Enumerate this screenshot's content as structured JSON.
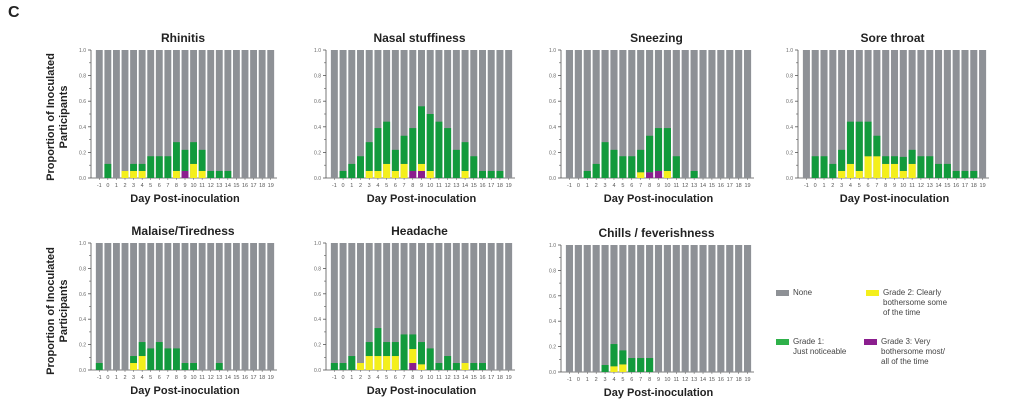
{
  "panel_label": "C",
  "y_axis_label_line1": "Proportion of Inoculated",
  "y_axis_label_line2": "Participants",
  "colors": {
    "none": "#8e9196",
    "grade1": "#129a3c",
    "grade2": "#f4ef1c",
    "grade3": "#8b1e8e",
    "axis": "#555555"
  },
  "legend": {
    "none": "None",
    "grade1_line1": "Grade 1:",
    "grade1_line2": "Just noticeable",
    "grade2_line1": "Grade 2: Clearly",
    "grade2_line2": "bothersome some",
    "grade2_line3": "of the time",
    "grade3_line1": "Grade 3: Very",
    "grade3_line2": "bothersome most/",
    "grade3_line3": "all of the time"
  },
  "chart_data": [
    {
      "type": "bar",
      "stacked": true,
      "title": "Rhinitis",
      "xlabel": "Day Post-inoculation",
      "ylabel": "Proportion of Inoculated Participants",
      "ylim": [
        0,
        1.0
      ],
      "yticks": [
        "0.0",
        "0.2",
        "0.4",
        "0.6",
        "0.8",
        "1.0"
      ],
      "categories": [
        "-1",
        "0",
        "1",
        "2",
        "3",
        "4",
        "5",
        "6",
        "7",
        "8",
        "9",
        "10",
        "11",
        "12",
        "13",
        "14",
        "15",
        "16",
        "17",
        "18",
        "19"
      ],
      "series": [
        {
          "name": "Grade 3",
          "values": [
            0,
            0,
            0,
            0,
            0,
            0,
            0,
            0,
            0,
            0,
            0.055,
            0,
            0,
            0,
            0,
            0,
            0,
            0,
            0,
            0,
            0
          ]
        },
        {
          "name": "Grade 2",
          "values": [
            0,
            0,
            0,
            0.055,
            0.055,
            0.055,
            0,
            0,
            0,
            0.055,
            0,
            0.11,
            0.055,
            0,
            0,
            0,
            0,
            0,
            0,
            0,
            0
          ]
        },
        {
          "name": "Grade 1",
          "values": [
            0,
            0.11,
            0,
            0,
            0.055,
            0.055,
            0.17,
            0.17,
            0.17,
            0.225,
            0.165,
            0.17,
            0.165,
            0.055,
            0.055,
            0.055,
            0,
            0,
            0,
            0,
            0
          ]
        },
        {
          "name": "None",
          "values": "remainder to 1.0"
        }
      ]
    },
    {
      "type": "bar",
      "stacked": true,
      "title": "Nasal stuffiness",
      "xlabel": "Day Post-inoculation",
      "ylim": [
        0,
        1.0
      ],
      "yticks": [
        "0.0",
        "0.2",
        "0.4",
        "0.6",
        "0.8",
        "1.0"
      ],
      "categories": [
        "-1",
        "0",
        "1",
        "2",
        "3",
        "4",
        "5",
        "6",
        "7",
        "8",
        "9",
        "10",
        "11",
        "12",
        "13",
        "14",
        "15",
        "16",
        "17",
        "18",
        "19"
      ],
      "series": [
        {
          "name": "Grade 3",
          "values": [
            0,
            0,
            0,
            0,
            0,
            0,
            0,
            0,
            0,
            0.055,
            0.055,
            0,
            0,
            0,
            0,
            0,
            0,
            0,
            0,
            0,
            0
          ]
        },
        {
          "name": "Grade 2",
          "values": [
            0,
            0,
            0,
            0,
            0.055,
            0.055,
            0.11,
            0.055,
            0.11,
            0,
            0.055,
            0.055,
            0,
            0,
            0,
            0.055,
            0,
            0,
            0,
            0,
            0
          ]
        },
        {
          "name": "Grade 1",
          "values": [
            0,
            0.055,
            0.11,
            0.17,
            0.225,
            0.335,
            0.33,
            0.165,
            0.22,
            0.335,
            0.45,
            0.445,
            0.44,
            0.39,
            0.22,
            0.225,
            0.17,
            0.055,
            0.055,
            0.055,
            0
          ]
        },
        {
          "name": "None",
          "values": "remainder to 1.0"
        }
      ]
    },
    {
      "type": "bar",
      "stacked": true,
      "title": "Sneezing",
      "xlabel": "Day Post-inoculation",
      "ylim": [
        0,
        1.0
      ],
      "yticks": [
        "0.0",
        "0.2",
        "0.4",
        "0.6",
        "0.8",
        "1.0"
      ],
      "categories": [
        "-1",
        "0",
        "1",
        "2",
        "3",
        "4",
        "5",
        "6",
        "7",
        "8",
        "9",
        "10",
        "11",
        "12",
        "13",
        "14",
        "15",
        "16",
        "17",
        "18",
        "19"
      ],
      "series": [
        {
          "name": "Grade 3",
          "values": [
            0,
            0,
            0,
            0,
            0,
            0,
            0,
            0,
            0,
            0.045,
            0.055,
            0,
            0,
            0,
            0,
            0,
            0,
            0,
            0,
            0,
            0
          ]
        },
        {
          "name": "Grade 2",
          "values": [
            0,
            0,
            0,
            0,
            0,
            0,
            0,
            0,
            0.045,
            0,
            0,
            0.055,
            0,
            0,
            0,
            0,
            0,
            0,
            0,
            0,
            0
          ]
        },
        {
          "name": "Grade 1",
          "values": [
            0,
            0,
            0.055,
            0.11,
            0.28,
            0.22,
            0.17,
            0.17,
            0.175,
            0.285,
            0.335,
            0.335,
            0.17,
            0,
            0.055,
            0,
            0,
            0,
            0,
            0,
            0
          ]
        },
        {
          "name": "None",
          "values": "remainder to 1.0"
        }
      ]
    },
    {
      "type": "bar",
      "stacked": true,
      "title": "Sore throat",
      "xlabel": "Day Post-inoculation",
      "ylim": [
        0,
        1.0
      ],
      "yticks": [
        "0.0",
        "0.2",
        "0.4",
        "0.6",
        "0.8",
        "1.0"
      ],
      "categories": [
        "-1",
        "0",
        "1",
        "2",
        "3",
        "4",
        "5",
        "6",
        "7",
        "8",
        "9",
        "10",
        "11",
        "12",
        "13",
        "14",
        "15",
        "16",
        "17",
        "18",
        "19"
      ],
      "series": [
        {
          "name": "Grade 3",
          "values": [
            0,
            0,
            0,
            0,
            0,
            0,
            0,
            0,
            0,
            0,
            0,
            0,
            0,
            0,
            0,
            0,
            0,
            0,
            0,
            0,
            0
          ]
        },
        {
          "name": "Grade 2",
          "values": [
            0,
            0,
            0,
            0,
            0.055,
            0.11,
            0.055,
            0.17,
            0.17,
            0.11,
            0.11,
            0.055,
            0.11,
            0,
            0,
            0,
            0,
            0,
            0,
            0,
            0
          ]
        },
        {
          "name": "Grade 1",
          "values": [
            0,
            0.17,
            0.17,
            0.11,
            0.165,
            0.33,
            0.385,
            0.27,
            0.16,
            0.06,
            0.06,
            0.11,
            0.11,
            0.17,
            0.17,
            0.11,
            0.11,
            0.055,
            0.055,
            0.055,
            0
          ]
        },
        {
          "name": "None",
          "values": "remainder to 1.0"
        }
      ]
    },
    {
      "type": "bar",
      "stacked": true,
      "title": "Malaise/Tiredness",
      "xlabel": "Day Post-inoculation",
      "ylabel": "Proportion of Inoculated Participants",
      "ylim": [
        0,
        1.0
      ],
      "yticks": [
        "0.0",
        "0.2",
        "0.4",
        "0.6",
        "0.8",
        "1.0"
      ],
      "categories": [
        "-1",
        "0",
        "1",
        "2",
        "3",
        "4",
        "5",
        "6",
        "7",
        "8",
        "9",
        "10",
        "11",
        "12",
        "13",
        "14",
        "15",
        "16",
        "17",
        "18",
        "19"
      ],
      "series": [
        {
          "name": "Grade 3",
          "values": [
            0,
            0,
            0,
            0,
            0,
            0,
            0,
            0,
            0,
            0,
            0,
            0,
            0,
            0,
            0,
            0,
            0,
            0,
            0,
            0,
            0
          ]
        },
        {
          "name": "Grade 2",
          "values": [
            0,
            0,
            0,
            0,
            0.055,
            0.11,
            0,
            0,
            0,
            0,
            0,
            0,
            0,
            0,
            0,
            0,
            0,
            0,
            0,
            0,
            0
          ]
        },
        {
          "name": "Grade 1",
          "values": [
            0.055,
            0,
            0,
            0,
            0.055,
            0.11,
            0.17,
            0.22,
            0.17,
            0.17,
            0.055,
            0.055,
            0,
            0,
            0.055,
            0,
            0,
            0,
            0,
            0,
            0
          ]
        },
        {
          "name": "None",
          "values": "remainder to 1.0"
        }
      ]
    },
    {
      "type": "bar",
      "stacked": true,
      "title": "Headache",
      "xlabel": "Day Post-inoculation",
      "ylim": [
        0,
        1.0
      ],
      "yticks": [
        "0.0",
        "0.2",
        "0.4",
        "0.6",
        "0.8",
        "1.0"
      ],
      "categories": [
        "-1",
        "0",
        "1",
        "2",
        "3",
        "4",
        "5",
        "6",
        "7",
        "8",
        "9",
        "10",
        "11",
        "12",
        "13",
        "14",
        "15",
        "16",
        "17",
        "18",
        "19"
      ],
      "series": [
        {
          "name": "Grade 3",
          "values": [
            0,
            0,
            0,
            0,
            0,
            0,
            0,
            0,
            0,
            0.055,
            0,
            0,
            0,
            0,
            0,
            0,
            0,
            0,
            0,
            0,
            0
          ]
        },
        {
          "name": "Grade 2",
          "values": [
            0,
            0,
            0,
            0.055,
            0.11,
            0.11,
            0.11,
            0.11,
            0,
            0.11,
            0.045,
            0,
            0,
            0,
            0,
            0.055,
            0,
            0,
            0,
            0,
            0
          ]
        },
        {
          "name": "Grade 1",
          "values": [
            0.055,
            0.055,
            0.11,
            0,
            0.11,
            0.22,
            0.11,
            0.11,
            0.28,
            0.115,
            0.175,
            0.17,
            0.055,
            0.11,
            0.055,
            0,
            0.055,
            0.055,
            0,
            0,
            0
          ]
        },
        {
          "name": "None",
          "values": "remainder to 1.0"
        }
      ]
    },
    {
      "type": "bar",
      "stacked": true,
      "title": "Chills / feverishness",
      "xlabel": "Day Post-inoculation",
      "ylim": [
        0,
        1.0
      ],
      "yticks": [
        "0.0",
        "0.2",
        "0.4",
        "0.6",
        "0.8",
        "1.0"
      ],
      "categories": [
        "-1",
        "0",
        "1",
        "2",
        "3",
        "4",
        "5",
        "6",
        "7",
        "8",
        "9",
        "10",
        "11",
        "12",
        "13",
        "14",
        "15",
        "16",
        "17",
        "18",
        "19"
      ],
      "series": [
        {
          "name": "Grade 3",
          "values": [
            0,
            0,
            0,
            0,
            0,
            0,
            0,
            0,
            0,
            0,
            0,
            0,
            0,
            0,
            0,
            0,
            0,
            0,
            0,
            0,
            0
          ]
        },
        {
          "name": "Grade 2",
          "values": [
            0,
            0,
            0,
            0,
            0,
            0.045,
            0.06,
            0,
            0,
            0,
            0,
            0,
            0,
            0,
            0,
            0,
            0,
            0,
            0,
            0,
            0
          ]
        },
        {
          "name": "Grade 1",
          "values": [
            0,
            0,
            0,
            0,
            0.055,
            0.175,
            0.11,
            0.11,
            0.11,
            0.11,
            0,
            0,
            0,
            0,
            0,
            0,
            0,
            0,
            0,
            0,
            0
          ]
        },
        {
          "name": "None",
          "values": "remainder to 1.0"
        }
      ]
    }
  ]
}
